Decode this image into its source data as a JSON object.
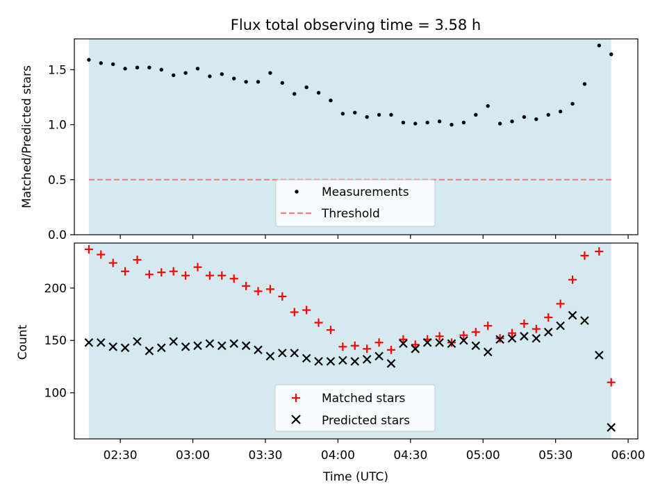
{
  "figure": {
    "title": "Flux total observing time = 3.58 h",
    "xlabel": "Time (UTC)",
    "x_ticks": [
      "02:30",
      "03:00",
      "03:30",
      "04:00",
      "04:30",
      "05:00",
      "05:30",
      "06:00"
    ],
    "shade_color": "#d4eaf0"
  },
  "chart_data": [
    {
      "type": "scatter",
      "title": "Flux total observing time = 3.58 h",
      "ylabel": "Matched/Predicted stars",
      "ylim": [
        0,
        1.78
      ],
      "y_ticks": [
        "0.0",
        "0.5",
        "1.0",
        "1.5"
      ],
      "xlim": [
        "02:11",
        "06:04"
      ],
      "shaded_range": [
        "02:17",
        "05:53"
      ],
      "grid": false,
      "legend_position": "lower center",
      "series": [
        {
          "name": "Measurements",
          "marker": "dot",
          "color": "#000000",
          "x": [
            "02:17",
            "02:22",
            "02:27",
            "02:32",
            "02:37",
            "02:42",
            "02:47",
            "02:52",
            "02:57",
            "03:02",
            "03:07",
            "03:12",
            "03:17",
            "03:22",
            "03:27",
            "03:32",
            "03:37",
            "03:42",
            "03:47",
            "03:52",
            "03:57",
            "04:02",
            "04:07",
            "04:12",
            "04:17",
            "04:22",
            "04:27",
            "04:32",
            "04:37",
            "04:42",
            "04:47",
            "04:52",
            "04:57",
            "05:02",
            "05:07",
            "05:12",
            "05:17",
            "05:22",
            "05:27",
            "05:32",
            "05:37",
            "05:42",
            "05:48",
            "05:53"
          ],
          "y": [
            1.59,
            1.56,
            1.55,
            1.51,
            1.52,
            1.52,
            1.5,
            1.45,
            1.47,
            1.51,
            1.44,
            1.46,
            1.42,
            1.39,
            1.39,
            1.47,
            1.38,
            1.28,
            1.34,
            1.29,
            1.22,
            1.1,
            1.11,
            1.07,
            1.09,
            1.09,
            1.02,
            1.01,
            1.02,
            1.03,
            1.0,
            1.02,
            1.09,
            1.17,
            1.01,
            1.03,
            1.07,
            1.05,
            1.09,
            1.12,
            1.19,
            1.37,
            1.72,
            1.64
          ]
        },
        {
          "name": "Threshold",
          "marker": "dashed-line",
          "color": "#f08080",
          "y": 0.5
        }
      ]
    },
    {
      "type": "scatter",
      "ylabel": "Count",
      "ylim": [
        56,
        243
      ],
      "y_ticks": [
        "100",
        "150",
        "200"
      ],
      "xlim": [
        "02:11",
        "06:04"
      ],
      "shaded_range": [
        "02:17",
        "05:53"
      ],
      "grid": false,
      "legend_position": "lower center",
      "series": [
        {
          "name": "Matched stars",
          "marker": "plus",
          "color": "#ff0000",
          "x": [
            "02:17",
            "02:22",
            "02:27",
            "02:32",
            "02:37",
            "02:42",
            "02:47",
            "02:52",
            "02:57",
            "03:02",
            "03:07",
            "03:12",
            "03:17",
            "03:22",
            "03:27",
            "03:32",
            "03:37",
            "03:42",
            "03:47",
            "03:52",
            "03:57",
            "04:02",
            "04:07",
            "04:12",
            "04:17",
            "04:22",
            "04:27",
            "04:32",
            "04:37",
            "04:42",
            "04:47",
            "04:52",
            "04:57",
            "05:02",
            "05:07",
            "05:12",
            "05:17",
            "05:22",
            "05:27",
            "05:32",
            "05:37",
            "05:42",
            "05:48",
            "05:53"
          ],
          "y": [
            237,
            232,
            224,
            216,
            227,
            213,
            215,
            216,
            212,
            220,
            212,
            212,
            209,
            202,
            197,
            199,
            192,
            177,
            179,
            167,
            160,
            144,
            145,
            142,
            148,
            141,
            151,
            146,
            151,
            154,
            148,
            155,
            158,
            164,
            152,
            157,
            166,
            161,
            172,
            185,
            208,
            231,
            235,
            110
          ]
        },
        {
          "name": "Predicted stars",
          "marker": "x",
          "color": "#000000",
          "x": [
            "02:17",
            "02:22",
            "02:27",
            "02:32",
            "02:37",
            "02:42",
            "02:47",
            "02:52",
            "02:57",
            "03:02",
            "03:07",
            "03:12",
            "03:17",
            "03:22",
            "03:27",
            "03:32",
            "03:37",
            "03:42",
            "03:47",
            "03:52",
            "03:57",
            "04:02",
            "04:07",
            "04:12",
            "04:17",
            "04:22",
            "04:27",
            "04:32",
            "04:37",
            "04:42",
            "04:47",
            "04:52",
            "04:57",
            "05:02",
            "05:07",
            "05:12",
            "05:17",
            "05:22",
            "05:27",
            "05:32",
            "05:37",
            "05:42",
            "05:48",
            "05:53"
          ],
          "y": [
            148,
            148,
            144,
            143,
            149,
            140,
            143,
            149,
            144,
            145,
            147,
            145,
            147,
            145,
            141,
            135,
            138,
            138,
            133,
            130,
            130,
            131,
            130,
            132,
            135,
            128,
            147,
            142,
            148,
            148,
            147,
            150,
            145,
            139,
            151,
            152,
            154,
            152,
            158,
            164,
            174,
            169,
            136,
            67
          ]
        }
      ]
    }
  ]
}
